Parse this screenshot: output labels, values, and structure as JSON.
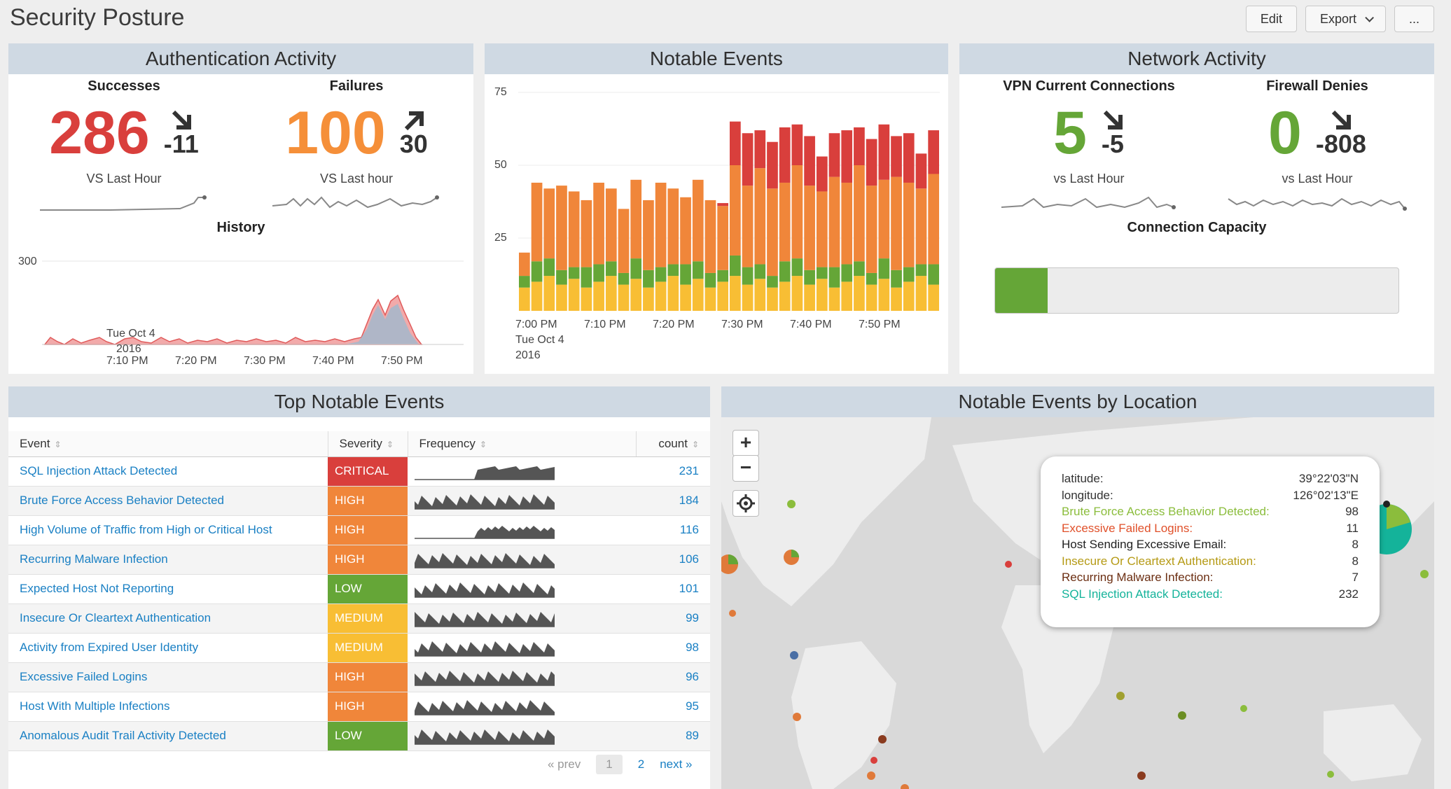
{
  "page": {
    "title": "Security Posture"
  },
  "toolbar": {
    "edit": "Edit",
    "export": "Export",
    "more": "..."
  },
  "colors": {
    "critical": "#d93f3c",
    "high": "#f0863a",
    "medium": "#f8be34",
    "low": "#65a637",
    "link": "#1a80c4"
  },
  "auth": {
    "title": "Authentication Activity",
    "successes": {
      "label": "Successes",
      "value": "286",
      "delta": "-11",
      "trend": "down",
      "sub": "VS Last Hour",
      "color": "#d93f3c"
    },
    "failures": {
      "label": "Failures",
      "value": "100",
      "delta": "30",
      "trend": "up",
      "sub": "VS Last hour",
      "color": "#f58f39"
    },
    "history": {
      "label": "History",
      "ytick": "300",
      "xticks": [
        "7:10 PM",
        "7:20 PM",
        "7:30 PM",
        "7:40 PM",
        "7:50 PM"
      ],
      "date_line1": "Tue Oct 4",
      "date_line2": "2016"
    }
  },
  "notable": {
    "title": "Notable Events",
    "yticks": [
      "75",
      "50",
      "25"
    ],
    "xticks": [
      "7:00 PM",
      "7:10 PM",
      "7:20 PM",
      "7:30 PM",
      "7:40 PM",
      "7:50 PM"
    ],
    "date_line1": "Tue Oct 4",
    "date_line2": "2016"
  },
  "network": {
    "title": "Network Activity",
    "vpn": {
      "label": "VPN Current Connections",
      "value": "5",
      "delta": "-5",
      "trend": "down",
      "sub": "vs Last Hour",
      "color": "#65a637"
    },
    "firewall": {
      "label": "Firewall Denies",
      "value": "0",
      "delta": "-808",
      "trend": "down",
      "sub": "vs Last Hour",
      "color": "#65a637"
    },
    "capacity": {
      "label": "Connection Capacity",
      "fraction": 0.13
    }
  },
  "top_events": {
    "title": "Top Notable Events",
    "columns": [
      "Event",
      "Severity",
      "Frequency",
      "count"
    ],
    "rows": [
      {
        "event": "SQL Injection Attack Detected",
        "severity": "CRITICAL",
        "count": "231"
      },
      {
        "event": "Brute Force Access Behavior Detected",
        "severity": "HIGH",
        "count": "184"
      },
      {
        "event": "High Volume of Traffic from High or Critical Host",
        "severity": "HIGH",
        "count": "116"
      },
      {
        "event": "Recurring Malware Infection",
        "severity": "HIGH",
        "count": "106"
      },
      {
        "event": "Expected Host Not Reporting",
        "severity": "LOW",
        "count": "101"
      },
      {
        "event": "Insecure Or Cleartext Authentication",
        "severity": "MEDIUM",
        "count": "99"
      },
      {
        "event": "Activity from Expired User Identity",
        "severity": "MEDIUM",
        "count": "98"
      },
      {
        "event": "Excessive Failed Logins",
        "severity": "HIGH",
        "count": "96"
      },
      {
        "event": "Host With Multiple Infections",
        "severity": "HIGH",
        "count": "95"
      },
      {
        "event": "Anomalous Audit Trail Activity Detected",
        "severity": "LOW",
        "count": "89"
      }
    ],
    "pager": {
      "prev": "« prev",
      "page1": "1",
      "page2": "2",
      "next": "next »"
    }
  },
  "map": {
    "title": "Notable Events by Location",
    "zoom_in": "+",
    "zoom_out": "−",
    "tooltip": {
      "latitude_label": "latitude:",
      "latitude": "39°22'03\"N",
      "longitude_label": "longitude:",
      "longitude": "126°02'13\"E",
      "items": [
        {
          "label": "Brute Force Access Behavior Detected:",
          "value": "98",
          "color": "#8bbd3c"
        },
        {
          "label": "Excessive Failed Logins:",
          "value": "11",
          "color": "#e0502a"
        },
        {
          "label": "Host Sending Excessive Email:",
          "value": "8",
          "color": "#222222"
        },
        {
          "label": "Insecure Or Cleartext Authentication:",
          "value": "8",
          "color": "#b59a14"
        },
        {
          "label": "Recurring Malware Infection:",
          "value": "7",
          "color": "#6b2e12"
        },
        {
          "label": "SQL Injection Attack Detected:",
          "value": "232",
          "color": "#14b39a"
        }
      ]
    }
  }
}
